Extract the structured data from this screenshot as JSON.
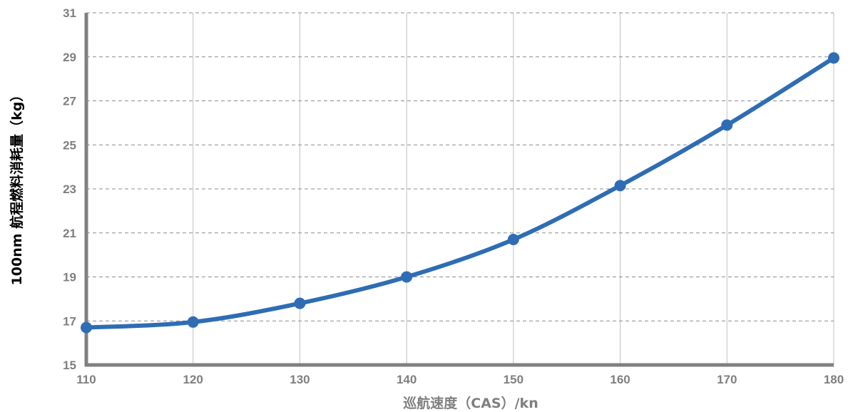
{
  "chart_data": {
    "type": "line",
    "title": "",
    "xlabel": "巡航速度（CAS）/kn",
    "ylabel": "100nm 航程燃料消耗量（kg）",
    "x": [
      110,
      120,
      130,
      140,
      150,
      160,
      170,
      180
    ],
    "series": [
      {
        "values": [
          16.7,
          16.95,
          17.8,
          19.0,
          20.7,
          23.15,
          25.9,
          28.95
        ]
      }
    ],
    "xlim": [
      110,
      180
    ],
    "ylim": [
      15,
      31
    ],
    "xticks": [
      110,
      120,
      130,
      140,
      150,
      160,
      170,
      180
    ],
    "yticks": [
      15,
      17,
      19,
      21,
      23,
      25,
      27,
      29,
      31
    ],
    "grid": {
      "x": "solid",
      "y": "dashed"
    },
    "legend": "none",
    "colors": {
      "line": "#2e6db4",
      "axis": "#808080",
      "grid_major": "#c0c0c0",
      "grid_dashed": "#8c8c8c"
    }
  }
}
